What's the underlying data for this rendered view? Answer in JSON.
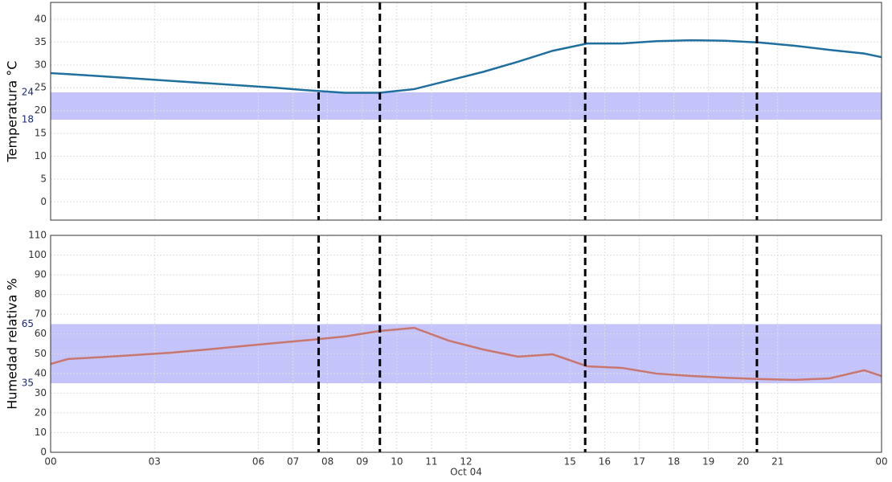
{
  "chart_data": [
    {
      "type": "line",
      "y_label": "Temperatura °C",
      "x": [
        0,
        0.5,
        1.5,
        2.5,
        3.5,
        4.5,
        5.5,
        6.5,
        7.5,
        8.5,
        9.5,
        10.5,
        11.5,
        12.5,
        13.5,
        14.5,
        15.5,
        16.5,
        17.5,
        18.5,
        19.5,
        20.5,
        21.5,
        22.5,
        23.5,
        24
      ],
      "series": [
        {
          "color": "#1f6f9f",
          "values": [
            28.2,
            28.0,
            27.5,
            27.0,
            26.5,
            26.0,
            25.5,
            25.0,
            24.4,
            23.9,
            23.9,
            24.7,
            26.6,
            28.5,
            30.7,
            33.1,
            34.7,
            34.7,
            35.2,
            35.4,
            35.3,
            34.9,
            34.2,
            33.3,
            32.5,
            31.7
          ]
        }
      ],
      "xlim": [
        0,
        24
      ],
      "ylim": [
        -4,
        43.7
      ],
      "yticks": [
        0,
        5,
        10,
        15,
        20,
        25,
        30,
        35,
        40
      ],
      "band": {
        "low": 18,
        "high": 24,
        "color": "#c4c4fb"
      },
      "vlines": [
        7.74,
        9.51,
        15.44,
        20.4
      ],
      "grid": true
    },
    {
      "type": "line",
      "y_label": "Humedad relativa %",
      "x": [
        0,
        0.5,
        1.5,
        2.5,
        3.5,
        4.5,
        5.5,
        6.5,
        7.5,
        8.5,
        9.5,
        10.5,
        11.5,
        12.5,
        13.5,
        14.5,
        15.5,
        16.5,
        17.5,
        18.5,
        19.5,
        20.5,
        21.5,
        22.5,
        23.5,
        24
      ],
      "series": [
        {
          "color": "#c8766e",
          "values": [
            44.8,
            47.3,
            48.3,
            49.4,
            50.5,
            52.1,
            53.8,
            55.4,
            57.0,
            58.7,
            61.5,
            63.1,
            56.6,
            52.1,
            48.5,
            49.7,
            43.6,
            42.8,
            39.9,
            38.7,
            37.8,
            37.1,
            36.7,
            37.5,
            41.6,
            38.7
          ]
        }
      ],
      "xlim": [
        0,
        24
      ],
      "ylim": [
        0,
        110
      ],
      "yticks": [
        0,
        10,
        20,
        30,
        40,
        50,
        60,
        70,
        80,
        90,
        100,
        110
      ],
      "xticks": [
        {
          "value": 0,
          "label": "00"
        },
        {
          "value": 3,
          "label": "03"
        },
        {
          "value": 6,
          "label": "06"
        },
        {
          "value": 7,
          "label": "07"
        },
        {
          "value": 8,
          "label": "08"
        },
        {
          "value": 9,
          "label": "09"
        },
        10,
        11,
        12,
        15,
        16,
        17,
        18,
        19,
        20,
        21,
        {
          "value": 24,
          "label": "00"
        }
      ],
      "x_sublabel": "Oct 04",
      "band": {
        "low": 35,
        "high": 65,
        "color": "#c4c4fb"
      },
      "vlines": [
        7.74,
        9.51,
        15.44,
        20.4
      ],
      "grid": true
    }
  ]
}
